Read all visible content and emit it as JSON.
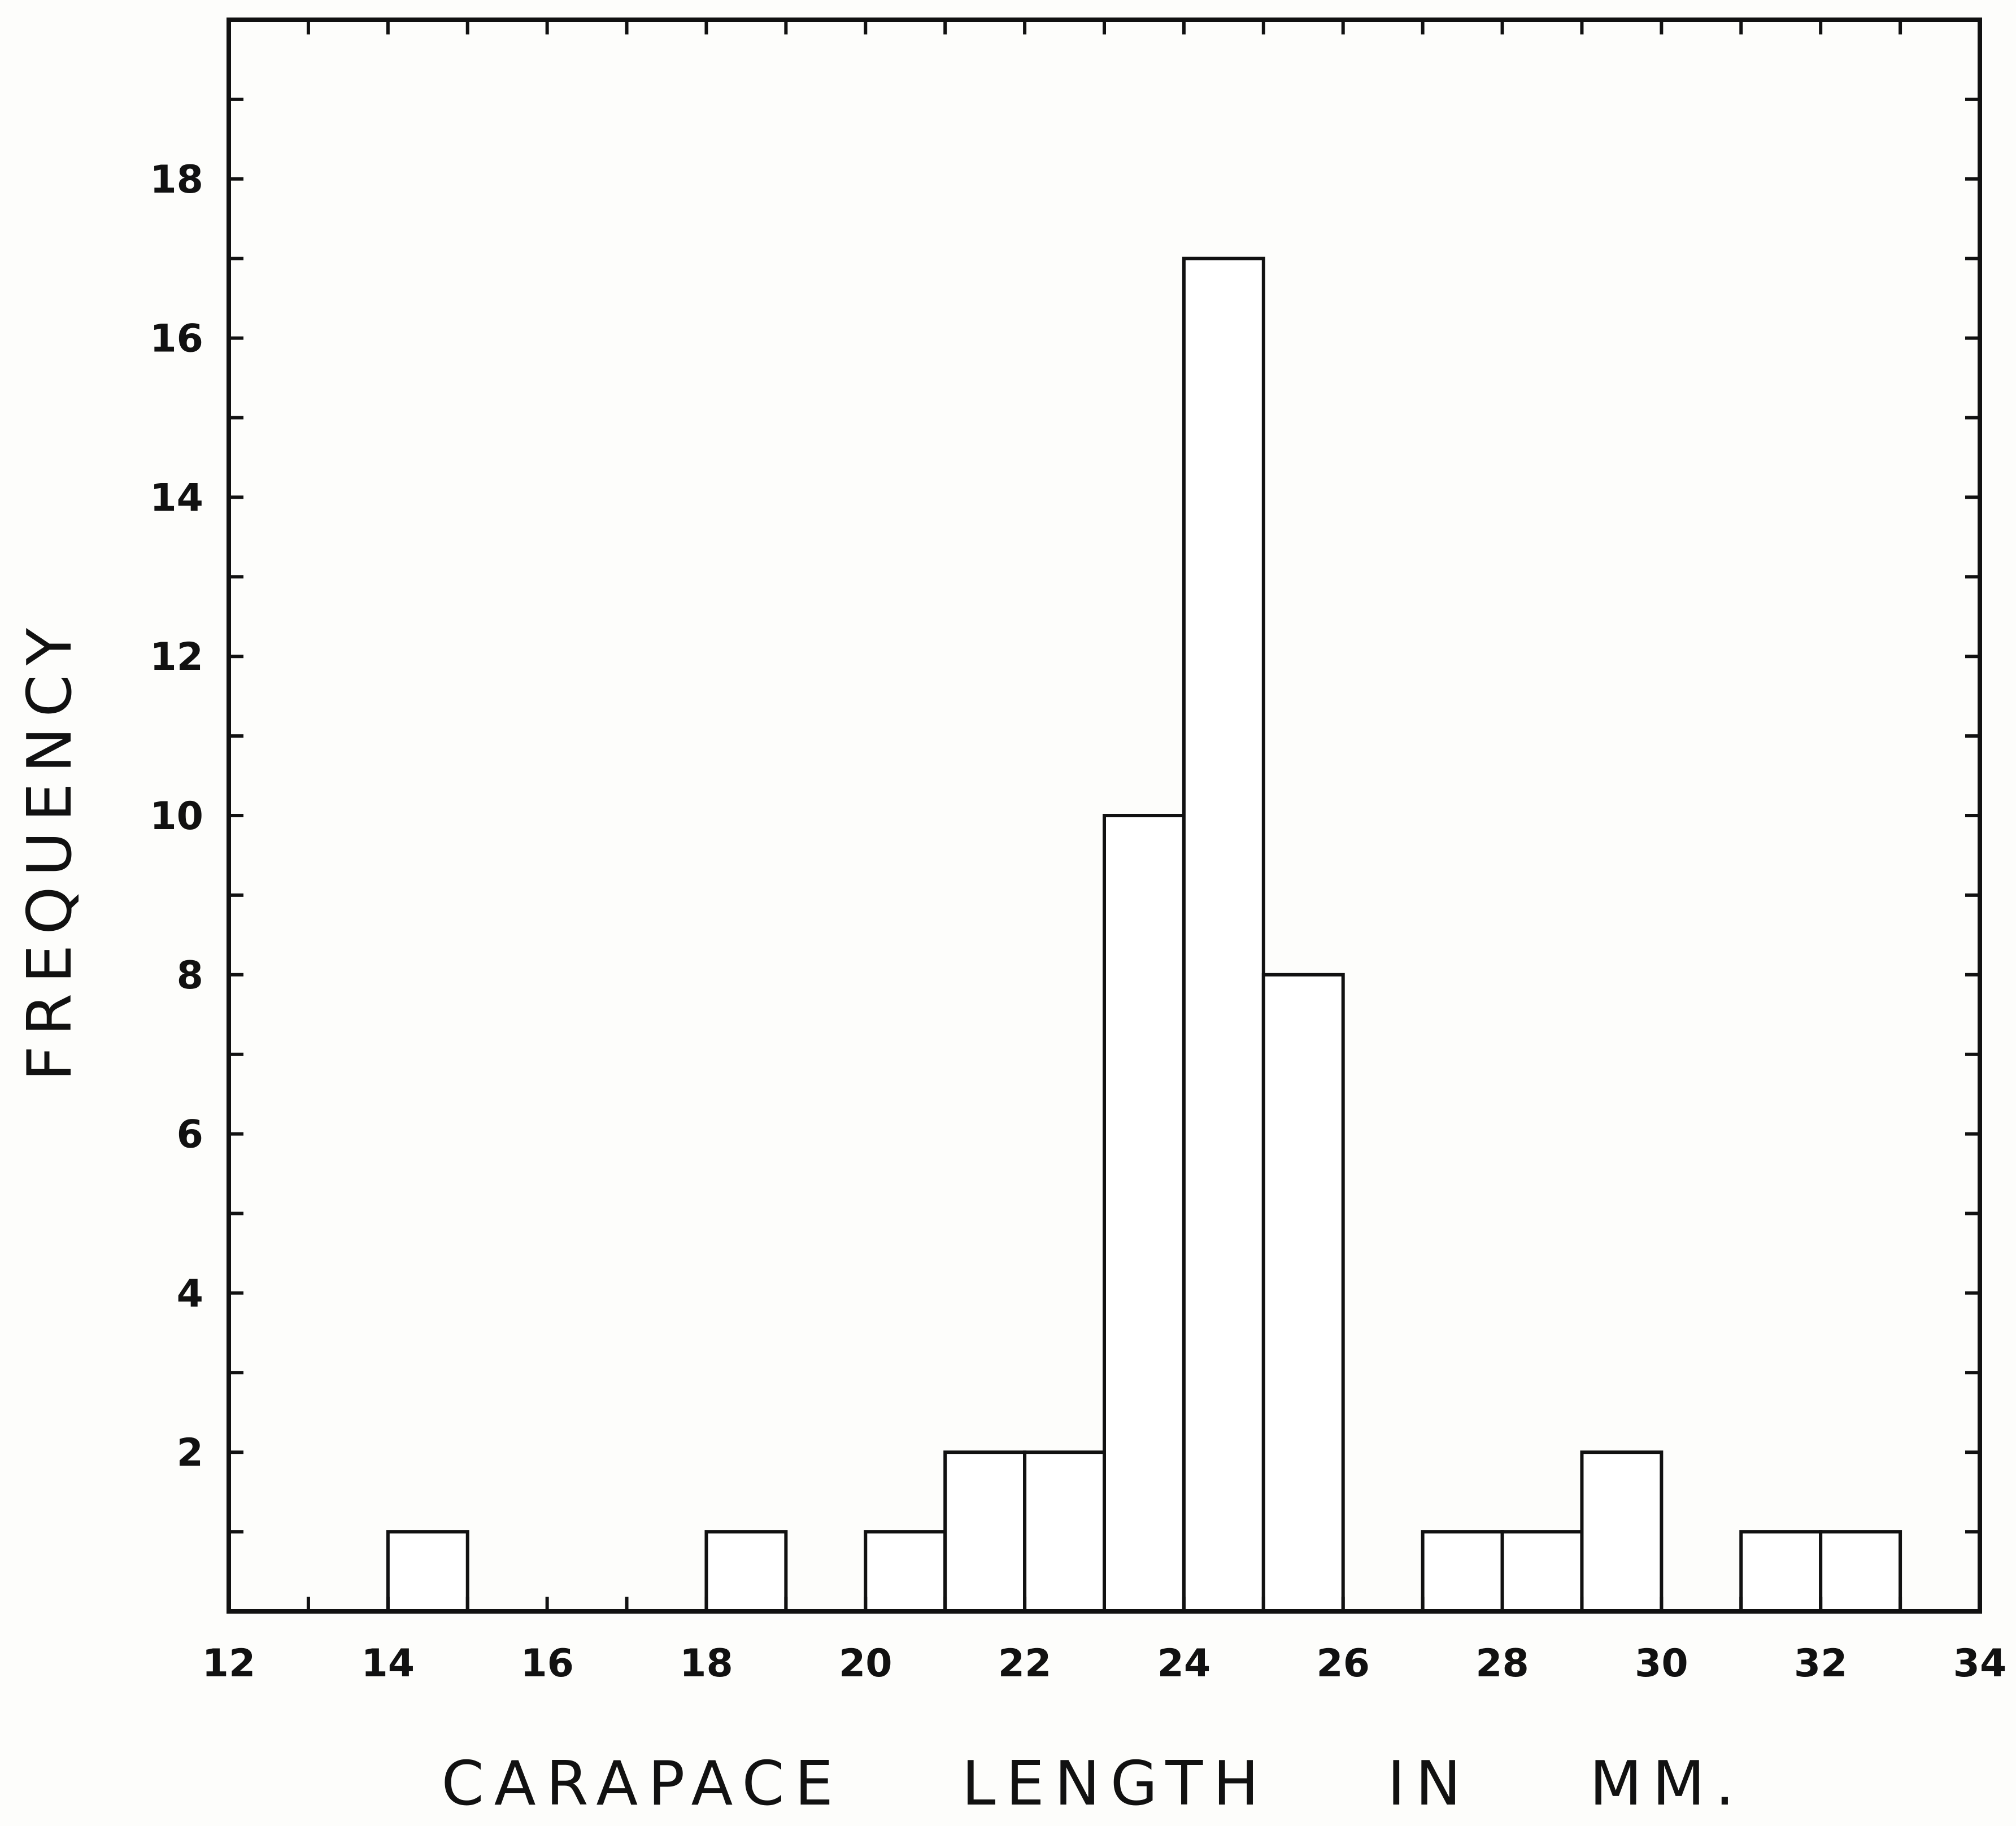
{
  "chart_data": {
    "type": "bar",
    "title": "",
    "xlabel": "CARAPACE    LENGTH    IN    MM.",
    "ylabel": "FREQUENCY",
    "xlim": [
      12,
      34
    ],
    "ylim": [
      0,
      20
    ],
    "x_ticks": [
      "12",
      "14",
      "16",
      "18",
      "20",
      "22",
      "24",
      "26",
      "28",
      "30",
      "32",
      "34"
    ],
    "y_ticks": [
      "2",
      "4",
      "6",
      "8",
      "10",
      "12",
      "14",
      "16",
      "18"
    ],
    "grid": false,
    "bins": [
      {
        "start": 14,
        "end": 15,
        "value": 1
      },
      {
        "start": 18,
        "end": 19,
        "value": 1
      },
      {
        "start": 20,
        "end": 21,
        "value": 1
      },
      {
        "start": 21,
        "end": 22,
        "value": 2
      },
      {
        "start": 22,
        "end": 23,
        "value": 2
      },
      {
        "start": 23,
        "end": 24,
        "value": 10
      },
      {
        "start": 24,
        "end": 25,
        "value": 17
      },
      {
        "start": 25,
        "end": 26,
        "value": 8
      },
      {
        "start": 27,
        "end": 28,
        "value": 1
      },
      {
        "start": 28,
        "end": 29,
        "value": 1
      },
      {
        "start": 29,
        "end": 30,
        "value": 2
      },
      {
        "start": 31,
        "end": 32,
        "value": 1
      },
      {
        "start": 32,
        "end": 33,
        "value": 1
      }
    ],
    "colors": {
      "ink": "#111111",
      "bar_fill": "#ffffff",
      "background": "#fdfdfb"
    }
  }
}
